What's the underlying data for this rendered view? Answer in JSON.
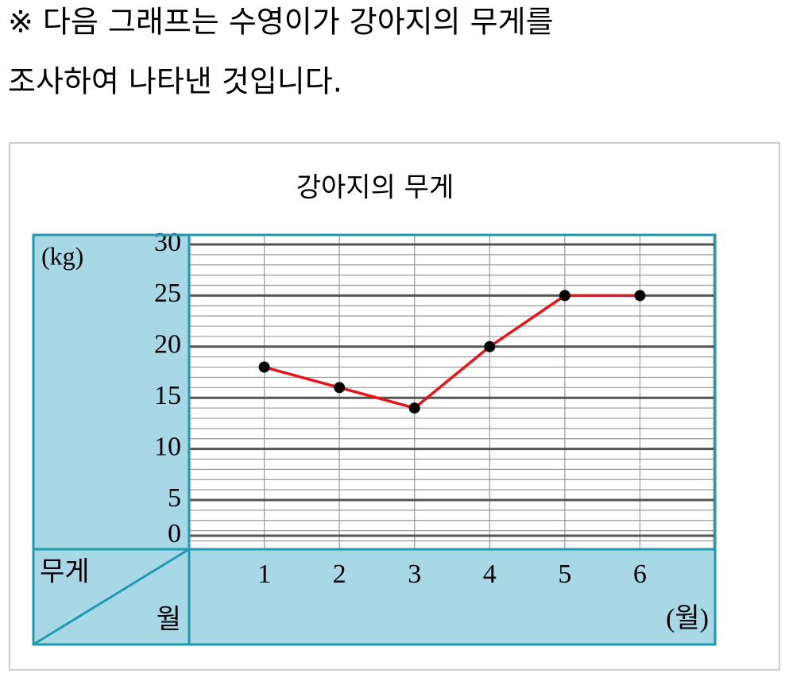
{
  "header": {
    "lines": [
      "※ 다음 그래프는 수영이가 강아지의 무게를",
      "조사하여 나타낸 것입니다."
    ]
  },
  "chart_data": {
    "type": "line",
    "title": "강아지의 무게",
    "y_label": "(kg)",
    "x_label": "(월)",
    "corner_top": "무게",
    "corner_bottom": "월",
    "categories": [
      "1",
      "2",
      "3",
      "4",
      "5",
      "6"
    ],
    "series": [
      {
        "name": "무게",
        "color": "#e8141c",
        "values": [
          18,
          16,
          14,
          20,
          25,
          25
        ]
      }
    ],
    "ylim": [
      0,
      30
    ],
    "yticks": [
      0,
      5,
      10,
      15,
      20,
      25,
      30
    ],
    "grid": true
  }
}
